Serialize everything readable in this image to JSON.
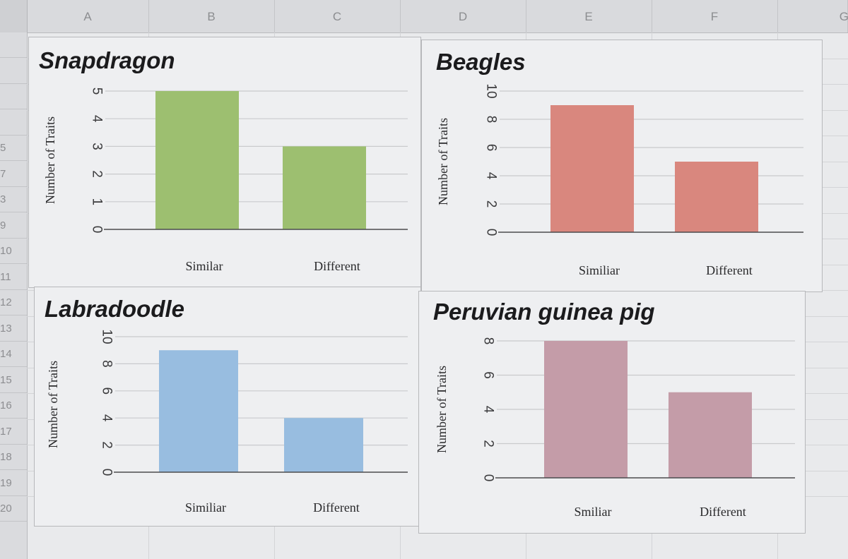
{
  "spreadsheet": {
    "columns": [
      "A",
      "B",
      "C",
      "D",
      "E",
      "F",
      "G"
    ],
    "rows": [
      "",
      "",
      "",
      "",
      "5",
      "7",
      "3",
      "9",
      "10",
      "11",
      "12",
      "13",
      "14",
      "15",
      "16",
      "17",
      "18",
      "19",
      "20"
    ]
  },
  "chart_data": [
    {
      "type": "bar",
      "title": "Snapdragon",
      "ylabel": "Number of Traits",
      "categories": [
        "Similar",
        "Different"
      ],
      "values": [
        5,
        3
      ],
      "ylim": [
        0,
        5
      ],
      "yticks": [
        "0",
        "1",
        "2",
        "3",
        "4",
        "5"
      ],
      "color": "#9dbf70",
      "grid": true
    },
    {
      "type": "bar",
      "title": "Beagles",
      "ylabel": "Number of Traits",
      "categories": [
        "Similiar",
        "Different"
      ],
      "values": [
        9,
        5
      ],
      "ylim": [
        0,
        10
      ],
      "yticks": [
        "0",
        "2",
        "4",
        "6",
        "8",
        "10"
      ],
      "color": "#d9877e",
      "grid": true
    },
    {
      "type": "bar",
      "title": "Labradoodle",
      "ylabel": "Number of Traits",
      "categories": [
        "Similiar",
        "Different"
      ],
      "values": [
        9,
        4
      ],
      "ylim": [
        0,
        10
      ],
      "yticks": [
        "0",
        "2",
        "4",
        "6",
        "8",
        "10"
      ],
      "color": "#98bde0",
      "grid": true
    },
    {
      "type": "bar",
      "title": "Peruvian guinea pig",
      "ylabel": "Number of Traits",
      "categories": [
        "Smiliar",
        "Different"
      ],
      "values": [
        8,
        5
      ],
      "ylim": [
        0,
        8
      ],
      "yticks": [
        "0",
        "2",
        "4",
        "6",
        "8"
      ],
      "color": "#c49ca8",
      "grid": true
    }
  ]
}
